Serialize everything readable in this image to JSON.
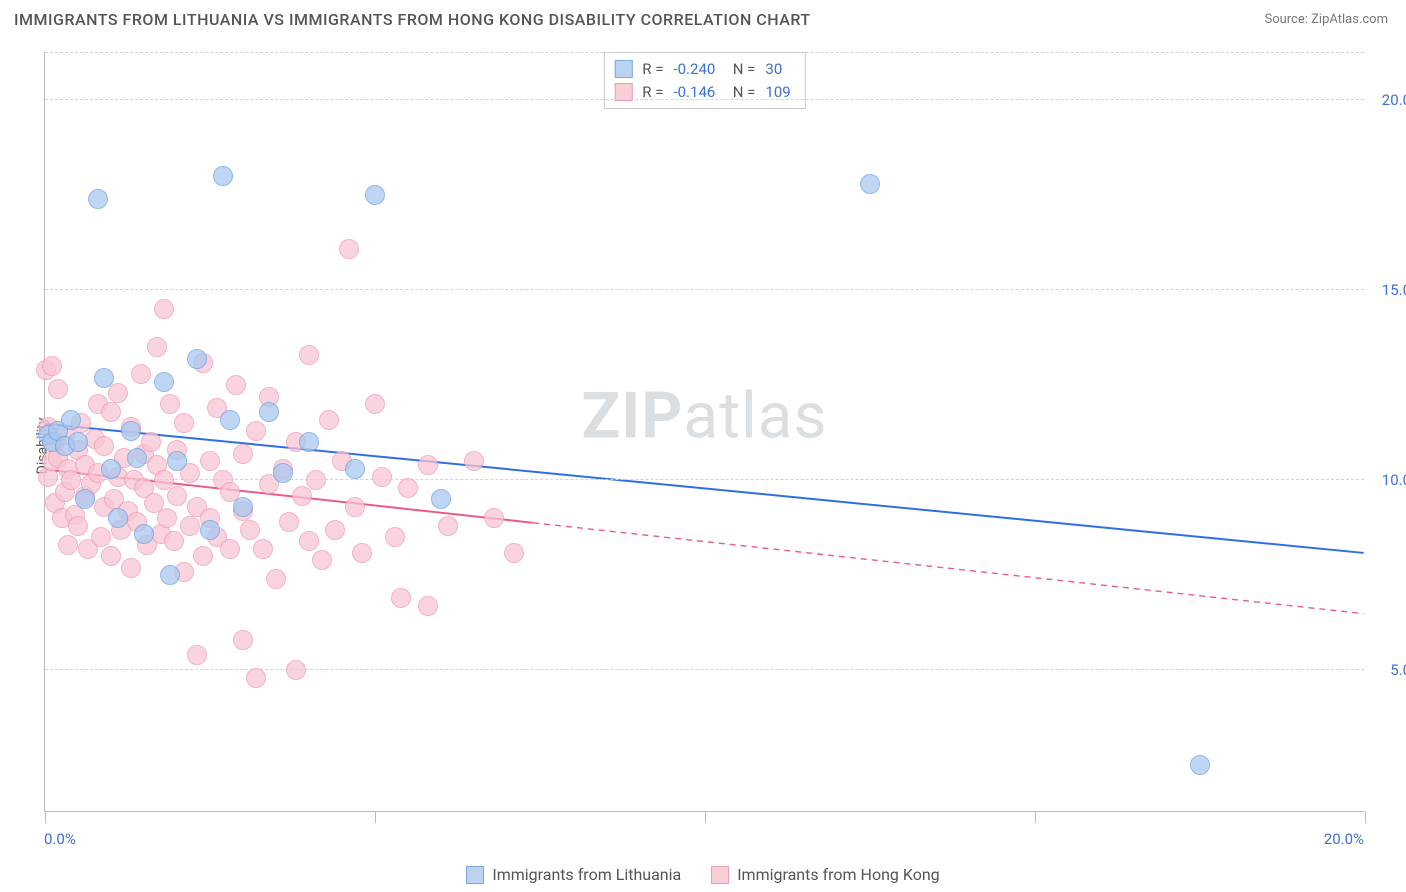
{
  "header": {
    "title": "IMMIGRANTS FROM LITHUANIA VS IMMIGRANTS FROM HONG KONG DISABILITY CORRELATION CHART",
    "source": "Source: ZipAtlas.com"
  },
  "chart": {
    "type": "scatter",
    "ylabel": "Disability",
    "watermark_prefix": "ZIP",
    "watermark_suffix": "atlas",
    "background_color": "#ffffff",
    "grid_color": "#d3d3d3",
    "axis_color": "#bbbbbb",
    "tick_label_color": "#3b72d4",
    "xlim": [
      0,
      20
    ],
    "ylim": [
      1.3,
      21.3
    ],
    "y_ticks": [
      5,
      10,
      15,
      20
    ],
    "y_tick_labels": [
      "5.0%",
      "10.0%",
      "15.0%",
      "20.0%"
    ],
    "x_ticks": [
      0,
      5,
      10,
      15,
      20
    ],
    "x_axis_labels": {
      "left": "0.0%",
      "right": "20.0%"
    },
    "marker_radius": 10,
    "marker_border_width": 1.5,
    "series": {
      "lithuania": {
        "label": "Immigrants from Lithuania",
        "fill": "#a9c7ef",
        "stroke": "#6fa2e2",
        "swatch_fill": "#bcd3f2",
        "swatch_stroke": "#7fa8e0",
        "R": "-0.240",
        "N": "30",
        "trend": {
          "x1": 0,
          "y1": 11.5,
          "x2": 20,
          "y2": 8.1,
          "solid_to_x": 20,
          "color": "#2f6fe0",
          "width": 2
        },
        "points": [
          [
            0.05,
            11.2
          ],
          [
            0.1,
            11.0
          ],
          [
            0.2,
            11.3
          ],
          [
            0.3,
            10.9
          ],
          [
            0.4,
            11.6
          ],
          [
            0.5,
            11.0
          ],
          [
            0.6,
            9.5
          ],
          [
            0.8,
            17.4
          ],
          [
            0.9,
            12.7
          ],
          [
            1.0,
            10.3
          ],
          [
            1.1,
            9.0
          ],
          [
            1.3,
            11.3
          ],
          [
            1.4,
            10.6
          ],
          [
            1.5,
            8.6
          ],
          [
            1.8,
            12.6
          ],
          [
            1.9,
            7.5
          ],
          [
            2.0,
            10.5
          ],
          [
            2.3,
            13.2
          ],
          [
            2.5,
            8.7
          ],
          [
            2.7,
            18.0
          ],
          [
            2.8,
            11.6
          ],
          [
            3.0,
            9.3
          ],
          [
            3.4,
            11.8
          ],
          [
            3.6,
            10.2
          ],
          [
            4.0,
            11.0
          ],
          [
            4.7,
            10.3
          ],
          [
            5.0,
            17.5
          ],
          [
            6.0,
            9.5
          ],
          [
            12.5,
            17.8
          ],
          [
            17.5,
            2.5
          ]
        ]
      },
      "hongkong": {
        "label": "Immigrants from Hong Kong",
        "fill": "#f8c6d3",
        "stroke": "#ef9db3",
        "swatch_fill": "#f8cfd9",
        "swatch_stroke": "#ec9fb4",
        "R": "-0.146",
        "N": "109",
        "trend": {
          "x1": 0,
          "y1": 10.3,
          "x2": 20,
          "y2": 6.5,
          "solid_to_x": 7.4,
          "color": "#ea5c87",
          "width": 2
        },
        "points": [
          [
            0.02,
            12.9
          ],
          [
            0.05,
            11.4
          ],
          [
            0.05,
            10.1
          ],
          [
            0.1,
            13.0
          ],
          [
            0.1,
            10.5
          ],
          [
            0.15,
            11.0
          ],
          [
            0.15,
            9.4
          ],
          [
            0.2,
            10.6
          ],
          [
            0.2,
            12.4
          ],
          [
            0.25,
            9.0
          ],
          [
            0.3,
            11.2
          ],
          [
            0.3,
            9.7
          ],
          [
            0.35,
            10.3
          ],
          [
            0.35,
            8.3
          ],
          [
            0.4,
            10.0
          ],
          [
            0.45,
            9.1
          ],
          [
            0.5,
            10.8
          ],
          [
            0.5,
            8.8
          ],
          [
            0.55,
            11.5
          ],
          [
            0.6,
            9.6
          ],
          [
            0.6,
            10.4
          ],
          [
            0.65,
            8.2
          ],
          [
            0.7,
            9.9
          ],
          [
            0.75,
            11.1
          ],
          [
            0.8,
            10.2
          ],
          [
            0.8,
            12.0
          ],
          [
            0.85,
            8.5
          ],
          [
            0.9,
            9.3
          ],
          [
            0.9,
            10.9
          ],
          [
            1.0,
            11.8
          ],
          [
            1.0,
            8.0
          ],
          [
            1.05,
            9.5
          ],
          [
            1.1,
            10.1
          ],
          [
            1.1,
            12.3
          ],
          [
            1.15,
            8.7
          ],
          [
            1.2,
            10.6
          ],
          [
            1.25,
            9.2
          ],
          [
            1.3,
            11.4
          ],
          [
            1.3,
            7.7
          ],
          [
            1.35,
            10.0
          ],
          [
            1.4,
            8.9
          ],
          [
            1.45,
            12.8
          ],
          [
            1.5,
            9.8
          ],
          [
            1.5,
            10.7
          ],
          [
            1.55,
            8.3
          ],
          [
            1.6,
            11.0
          ],
          [
            1.65,
            9.4
          ],
          [
            1.7,
            10.4
          ],
          [
            1.7,
            13.5
          ],
          [
            1.75,
            8.6
          ],
          [
            1.8,
            14.5
          ],
          [
            1.8,
            10.0
          ],
          [
            1.85,
            9.0
          ],
          [
            1.9,
            12.0
          ],
          [
            1.95,
            8.4
          ],
          [
            2.0,
            10.8
          ],
          [
            2.0,
            9.6
          ],
          [
            2.1,
            11.5
          ],
          [
            2.1,
            7.6
          ],
          [
            2.2,
            10.2
          ],
          [
            2.2,
            8.8
          ],
          [
            2.3,
            9.3
          ],
          [
            2.3,
            5.4
          ],
          [
            2.4,
            13.1
          ],
          [
            2.4,
            8.0
          ],
          [
            2.5,
            10.5
          ],
          [
            2.5,
            9.0
          ],
          [
            2.6,
            11.9
          ],
          [
            2.6,
            8.5
          ],
          [
            2.7,
            10.0
          ],
          [
            2.8,
            9.7
          ],
          [
            2.8,
            8.2
          ],
          [
            2.9,
            12.5
          ],
          [
            3.0,
            10.7
          ],
          [
            3.0,
            9.2
          ],
          [
            3.0,
            5.8
          ],
          [
            3.1,
            8.7
          ],
          [
            3.2,
            4.8
          ],
          [
            3.2,
            11.3
          ],
          [
            3.3,
            8.2
          ],
          [
            3.4,
            9.9
          ],
          [
            3.4,
            12.2
          ],
          [
            3.5,
            7.4
          ],
          [
            3.6,
            10.3
          ],
          [
            3.7,
            8.9
          ],
          [
            3.8,
            11.0
          ],
          [
            3.8,
            5.0
          ],
          [
            3.9,
            9.6
          ],
          [
            4.0,
            13.3
          ],
          [
            4.0,
            8.4
          ],
          [
            4.1,
            10.0
          ],
          [
            4.2,
            7.9
          ],
          [
            4.3,
            11.6
          ],
          [
            4.4,
            8.7
          ],
          [
            4.5,
            10.5
          ],
          [
            4.6,
            16.1
          ],
          [
            4.7,
            9.3
          ],
          [
            4.8,
            8.1
          ],
          [
            5.0,
            12.0
          ],
          [
            5.1,
            10.1
          ],
          [
            5.3,
            8.5
          ],
          [
            5.4,
            6.9
          ],
          [
            5.5,
            9.8
          ],
          [
            5.8,
            10.4
          ],
          [
            5.8,
            6.7
          ],
          [
            6.1,
            8.8
          ],
          [
            6.5,
            10.5
          ],
          [
            6.8,
            9.0
          ],
          [
            7.1,
            8.1
          ]
        ]
      }
    }
  }
}
